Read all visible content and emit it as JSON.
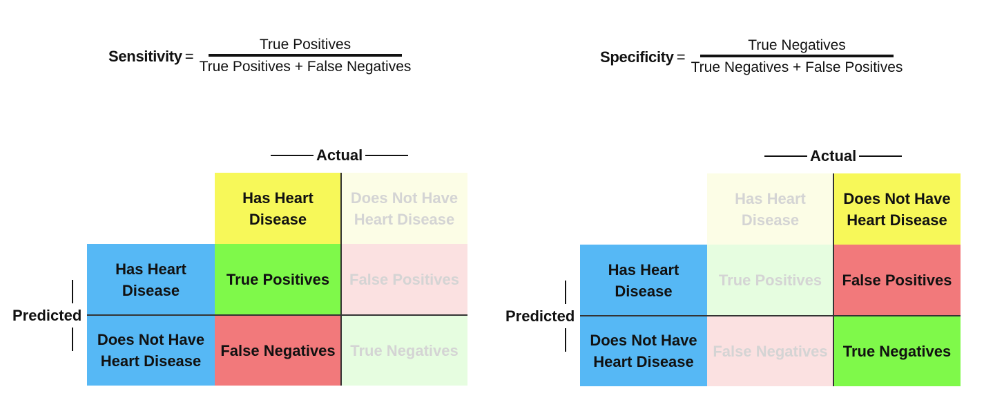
{
  "left": {
    "formula": {
      "lhs": "Sensitivity",
      "eq": "=",
      "numerator": "True Positives",
      "denominator": "True Positives + False Negatives"
    },
    "actual_label": "Actual",
    "predicted_label": "Predicted",
    "actual_headers": [
      "Has Heart Disease",
      "Does Not Have Heart Disease"
    ],
    "predicted_headers": [
      "Has Heart Disease",
      "Does Not Have Heart Disease"
    ],
    "cells": {
      "tp": "True Positives",
      "fp": "False Positives",
      "fn": "False Negatives",
      "tn": "True Negatives"
    }
  },
  "right": {
    "formula": {
      "lhs": "Specificity",
      "eq": "=",
      "numerator": "True Negatives",
      "denominator": "True Negatives + False Positives"
    },
    "actual_label": "Actual",
    "predicted_label": "Predicted",
    "actual_headers": [
      "Has Heart Disease",
      "Does Not Have Heart Disease"
    ],
    "predicted_headers": [
      "Has Heart Disease",
      "Does Not Have Heart Disease"
    ],
    "cells": {
      "tp": "True Positives",
      "fp": "False Positives",
      "fn": "False Negatives",
      "tn": "True Negatives"
    }
  },
  "colors": {
    "yellow": "#f7f859",
    "blue": "#56b8f5",
    "green": "#7ff94a",
    "red": "#f2797b"
  }
}
